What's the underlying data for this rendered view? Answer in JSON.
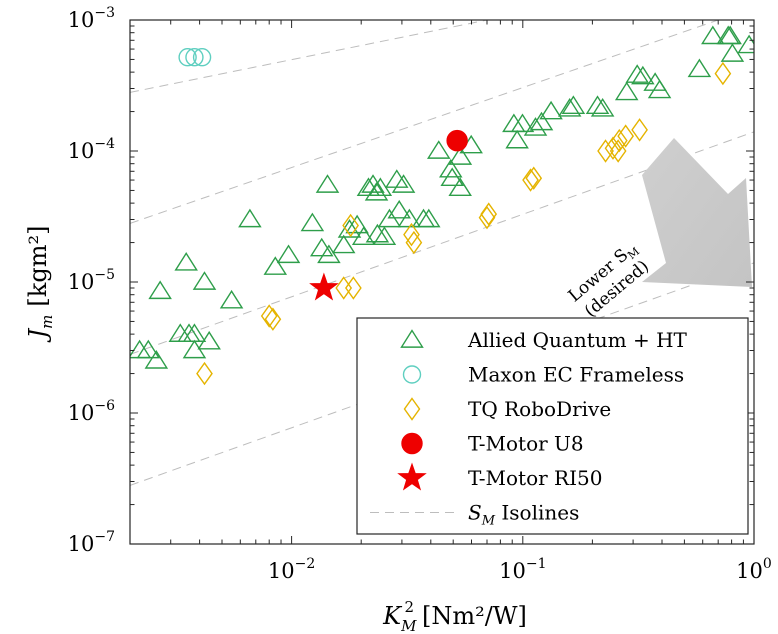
{
  "chart_data": {
    "type": "scatter",
    "xscale": "log",
    "yscale": "log",
    "xlim": [
      0.002,
      1
    ],
    "ylim": [
      1e-07,
      0.001
    ],
    "grid": false,
    "legend_position": "bottom-right",
    "xlabel": {
      "main": "K",
      "sub": "M",
      "sup": "2",
      "unit": "[Nm²/W]"
    },
    "ylabel": {
      "main": "J",
      "sub": "m",
      "unit": "[kgm²]"
    },
    "x_ticks": [
      {
        "value": 0.01,
        "base": "10",
        "exp": "−2"
      },
      {
        "value": 0.1,
        "base": "10",
        "exp": "−1"
      },
      {
        "value": 1,
        "base": "10",
        "exp": "0"
      }
    ],
    "y_ticks": [
      {
        "value": 1e-07,
        "base": "10",
        "exp": "−7"
      },
      {
        "value": 1e-06,
        "base": "10",
        "exp": "−6"
      },
      {
        "value": 1e-05,
        "base": "10",
        "exp": "−5"
      },
      {
        "value": 0.0001,
        "base": "10",
        "exp": "−4"
      },
      {
        "value": 0.001,
        "base": "10",
        "exp": "−3"
      }
    ],
    "annotation": {
      "line1": "Lower S",
      "line1_sub": "M",
      "line2": "(desired)"
    },
    "isolines": [
      {
        "points": [
          [
            0.002,
            0.00028
          ],
          [
            0.07,
            0.001
          ]
        ]
      },
      {
        "points": [
          [
            0.002,
            2.8e-05
          ],
          [
            0.7,
            0.001
          ]
        ]
      },
      {
        "points": [
          [
            0.002,
            2.8e-06
          ],
          [
            1,
            0.00014
          ]
        ]
      },
      {
        "points": [
          [
            0.002,
            2.8e-07
          ],
          [
            1,
            1.4e-05
          ]
        ]
      }
    ],
    "series": [
      {
        "name": "Allied Quantum + HT",
        "marker": "triangle",
        "color": "#2e9e4a",
        "filled": false,
        "points": [
          [
            0.0022,
            3e-06
          ],
          [
            0.0024,
            3e-06
          ],
          [
            0.0026,
            2.5e-06
          ],
          [
            0.0027,
            8.5e-06
          ],
          [
            0.0033,
            4e-06
          ],
          [
            0.0035,
            1.4e-05
          ],
          [
            0.0036,
            4e-06
          ],
          [
            0.0038,
            3e-06
          ],
          [
            0.0038,
            4e-06
          ],
          [
            0.0042,
            1e-05
          ],
          [
            0.0044,
            3.5e-06
          ],
          [
            0.0055,
            7.2e-06
          ],
          [
            0.0066,
            3e-05
          ],
          [
            0.0085,
            1.3e-05
          ],
          [
            0.0097,
            1.6e-05
          ],
          [
            0.0123,
            2.8e-05
          ],
          [
            0.0135,
            1.8e-05
          ],
          [
            0.0143,
            5.5e-05
          ],
          [
            0.0145,
            1.6e-05
          ],
          [
            0.0168,
            1.9e-05
          ],
          [
            0.0178,
            2.5e-05
          ],
          [
            0.0192,
            2.7e-05
          ],
          [
            0.0205,
            2.2e-05
          ],
          [
            0.0215,
            5.2e-05
          ],
          [
            0.0225,
            5.5e-05
          ],
          [
            0.0233,
            4.8e-05
          ],
          [
            0.0235,
            2.3e-05
          ],
          [
            0.0242,
            5.2e-05
          ],
          [
            0.0252,
            2.2e-05
          ],
          [
            0.0265,
            3e-05
          ],
          [
            0.0285,
            6e-05
          ],
          [
            0.0305,
            5.5e-05
          ],
          [
            0.0292,
            3.5e-05
          ],
          [
            0.0323,
            3e-05
          ],
          [
            0.0372,
            3e-05
          ],
          [
            0.0392,
            3e-05
          ],
          [
            0.0433,
            0.0001
          ],
          [
            0.0488,
            7.2e-05
          ],
          [
            0.0495,
            6.2e-05
          ],
          [
            0.0536,
            5.2e-05
          ],
          [
            0.0537,
            9e-05
          ],
          [
            0.0598,
            0.00011
          ],
          [
            0.0915,
            0.00016
          ],
          [
            0.0945,
            0.00012
          ],
          [
            0.0997,
            0.00016
          ],
          [
            0.1135,
            0.00015
          ],
          [
            0.1205,
            0.000165
          ],
          [
            0.1325,
            0.0002
          ],
          [
            0.1595,
            0.00021
          ],
          [
            0.1655,
            0.00022
          ],
          [
            0.2105,
            0.00022
          ],
          [
            0.2215,
            0.00021
          ],
          [
            0.2815,
            0.00028
          ],
          [
            0.3125,
            0.00038
          ],
          [
            0.3305,
            0.00037
          ],
          [
            0.3735,
            0.00033
          ],
          [
            0.3905,
            0.00029
          ],
          [
            0.5805,
            0.00042
          ],
          [
            0.6635,
            0.00075
          ],
          [
            0.7735,
            0.00075
          ],
          [
            0.7885,
            0.00075
          ],
          [
            0.8065,
            0.00055
          ],
          [
            0.9525,
            0.00064
          ]
        ]
      },
      {
        "name": "Maxon EC Frameless",
        "marker": "circle",
        "color": "#5fcfc0",
        "filled": false,
        "points": [
          [
            0.00355,
            0.00052
          ],
          [
            0.0038,
            0.00052
          ],
          [
            0.0041,
            0.00052
          ]
        ]
      },
      {
        "name": "TQ RoboDrive",
        "marker": "diamond",
        "color": "#e5b400",
        "filled": false,
        "points": [
          [
            0.0042,
            2e-06
          ],
          [
            0.008,
            5.5e-06
          ],
          [
            0.0083,
            5.2e-06
          ],
          [
            0.0168,
            9e-06
          ],
          [
            0.018,
            2.7e-05
          ],
          [
            0.0185,
            9e-06
          ],
          [
            0.033,
            2.3e-05
          ],
          [
            0.0338,
            2e-05
          ],
          [
            0.07,
            3.1e-05
          ],
          [
            0.0712,
            3.3e-05
          ],
          [
            0.108,
            6e-05
          ],
          [
            0.1115,
            6.2e-05
          ],
          [
            0.228,
            0.0001
          ],
          [
            0.2455,
            0.000105
          ],
          [
            0.2585,
            0.0001
          ],
          [
            0.2615,
            0.00012
          ],
          [
            0.2785,
            0.00013
          ],
          [
            0.32,
            0.000145
          ],
          [
            0.7335,
            0.00039
          ]
        ]
      },
      {
        "name": "T-Motor U8",
        "marker": "circle",
        "color": "#ee0000",
        "filled": true,
        "points": [
          [
            0.052,
            0.00012
          ]
        ]
      },
      {
        "name": "T-Motor RI50",
        "marker": "star",
        "color": "#ee0000",
        "filled": true,
        "points": [
          [
            0.0138,
            9e-06
          ]
        ]
      }
    ],
    "isoline_legend": {
      "main": "S",
      "sub": "M",
      "rest": " Isolines"
    }
  }
}
